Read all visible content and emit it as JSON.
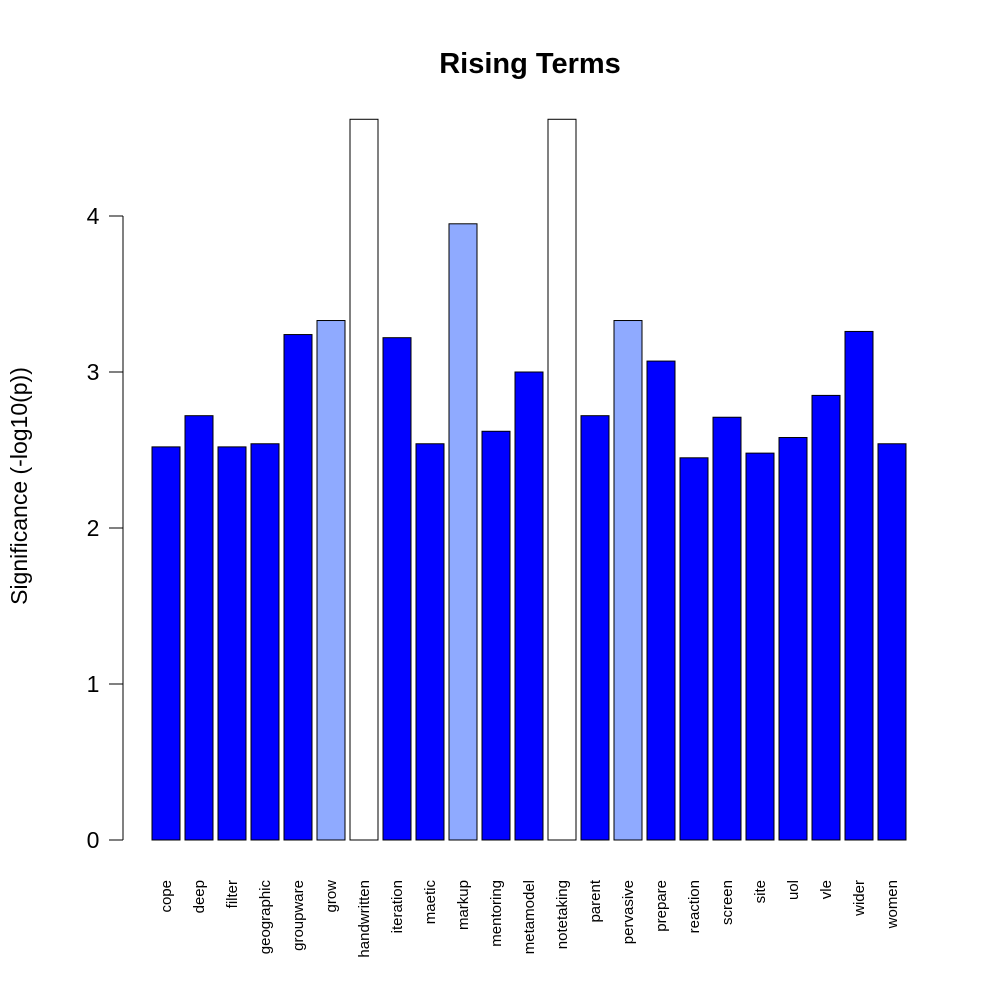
{
  "chart_data": {
    "type": "bar",
    "title": "Rising Terms",
    "xlabel": "",
    "ylabel": "Significance (-log10(p))",
    "ylim": [
      0,
      4.62
    ],
    "yticks": [
      "0",
      "1",
      "2",
      "3",
      "4"
    ],
    "grid": false,
    "legend": "none",
    "categories": [
      "cope",
      "deep",
      "filter",
      "geographic",
      "groupware",
      "grow",
      "handwritten",
      "iteration",
      "maetic",
      "markup",
      "mentoring",
      "metamodel",
      "notetaking",
      "parent",
      "pervasive",
      "prepare",
      "reaction",
      "screen",
      "site",
      "uol",
      "vle",
      "wider",
      "women"
    ],
    "values": [
      2.52,
      2.72,
      2.52,
      2.54,
      3.24,
      3.33,
      4.62,
      3.22,
      2.54,
      3.95,
      2.62,
      3.0,
      4.62,
      2.72,
      3.33,
      3.07,
      2.45,
      2.71,
      2.48,
      2.58,
      2.85,
      3.26,
      2.54
    ],
    "bar_colors": [
      "#0000ff",
      "#0000ff",
      "#0000ff",
      "#0000ff",
      "#0000ff",
      "#8faaff",
      "#ffffff",
      "#0000ff",
      "#0000ff",
      "#8faaff",
      "#0000ff",
      "#0000ff",
      "#ffffff",
      "#0000ff",
      "#8faaff",
      "#0000ff",
      "#0000ff",
      "#0000ff",
      "#0000ff",
      "#0000ff",
      "#0000ff",
      "#0000ff",
      "#0000ff"
    ]
  }
}
